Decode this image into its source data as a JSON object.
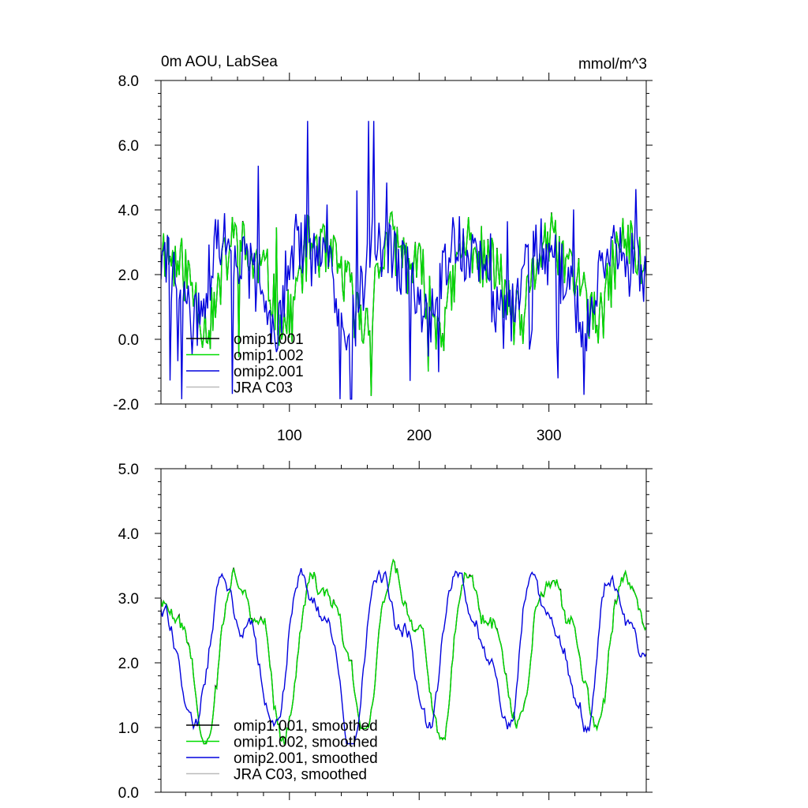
{
  "chart_data": [
    {
      "type": "line",
      "title_left": "0m AOU, LabSea",
      "title_right": "mmol/m^3",
      "xlabel": "",
      "ylabel": "",
      "xlim": [
        1,
        375
      ],
      "ylim": [
        -2.0,
        8.0
      ],
      "xticks": [
        100,
        200,
        300
      ],
      "xtick_labels": [
        "100",
        "200",
        "300"
      ],
      "yticks": [
        -2.0,
        0.0,
        2.0,
        4.0,
        6.0,
        8.0
      ],
      "ytick_labels": [
        "-2.0",
        "0.0",
        "2.0",
        "4.0",
        "6.0",
        "8.0"
      ],
      "legend": [
        "omip1.001",
        "omip1.002",
        "omip2.001",
        "JRA C03"
      ],
      "series": [
        {
          "name": "omip1.001",
          "color": "#000000"
        },
        {
          "name": "omip1.002",
          "color": "#00dd00"
        },
        {
          "name": "omip2.001",
          "color": "#0000dd"
        },
        {
          "name": "JRA C03",
          "color": "#bbbbbb"
        }
      ],
      "period": 60,
      "n_points": 375
    },
    {
      "type": "line",
      "title_left": "",
      "title_right": "",
      "xlabel": "",
      "ylabel": "",
      "xlim": [
        1,
        375
      ],
      "ylim": [
        0.0,
        5.0
      ],
      "xticks": [
        100,
        200,
        300
      ],
      "xtick_labels": [
        "",
        "",
        ""
      ],
      "yticks": [
        0.0,
        1.0,
        2.0,
        3.0,
        4.0,
        5.0
      ],
      "ytick_labels": [
        "0.0",
        "1.0",
        "2.0",
        "3.0",
        "4.0",
        "5.0"
      ],
      "legend": [
        "omip1.001, smoothed",
        "omip1.002, smoothed",
        "omip2.001, smoothed",
        "JRA C03, smoothed"
      ],
      "series": [
        {
          "name": "omip1.001, smoothed",
          "color": "#000000"
        },
        {
          "name": "omip1.002, smoothed",
          "color": "#00dd00"
        },
        {
          "name": "omip2.001, smoothed",
          "color": "#0000dd"
        },
        {
          "name": "JRA C03, smoothed",
          "color": "#bbbbbb"
        }
      ],
      "period": 60,
      "n_points": 375
    }
  ]
}
